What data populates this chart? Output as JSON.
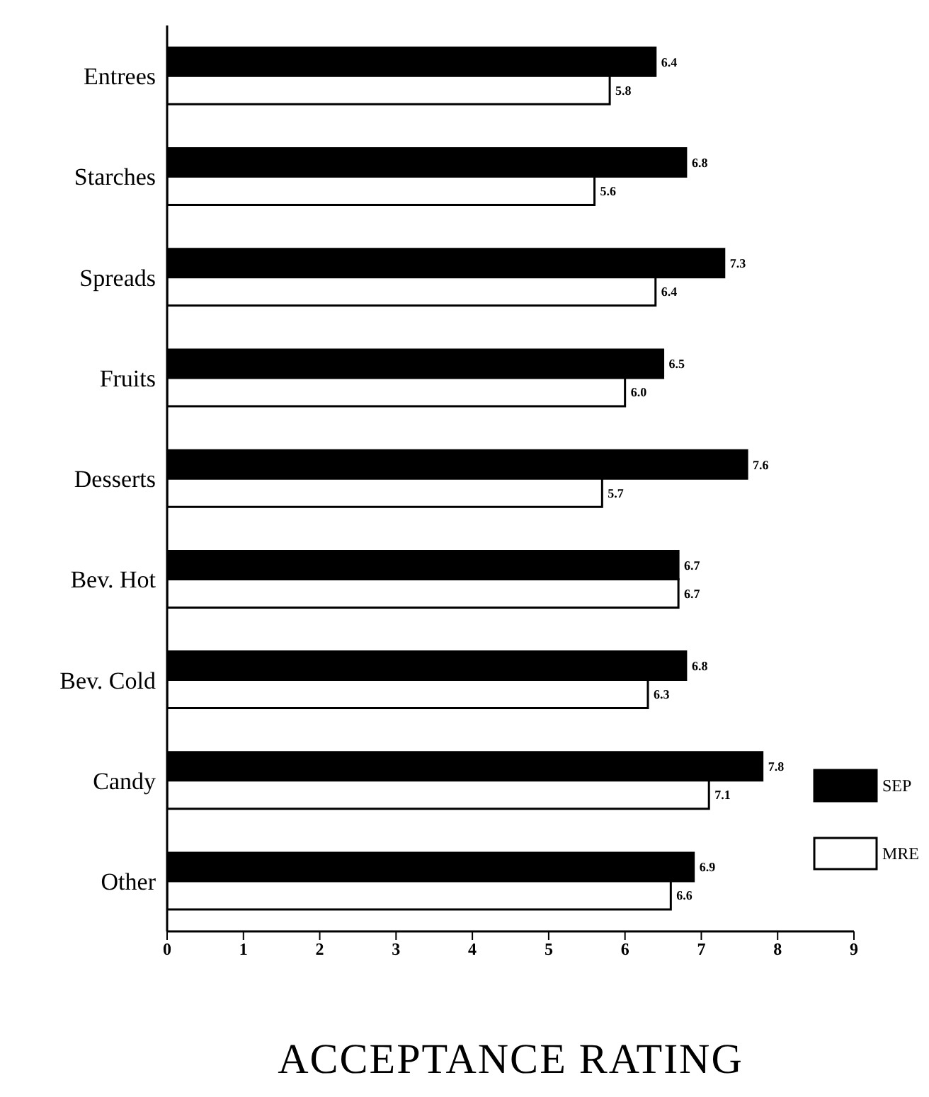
{
  "chart_data": {
    "type": "bar",
    "orientation": "horizontal",
    "xlabel": "ACCEPTANCE RATING",
    "categories": [
      "Entrees",
      "Starches",
      "Spreads",
      "Fruits",
      "Desserts",
      "Bev. Hot",
      "Bev. Cold",
      "Candy",
      "Other"
    ],
    "series": [
      {
        "name": "SEP",
        "color": "#000000",
        "values": [
          6.4,
          6.8,
          7.3,
          6.5,
          7.6,
          6.7,
          6.8,
          7.8,
          6.9
        ],
        "value_labels": [
          "6.4",
          "6.8",
          "7.3",
          "6.5",
          "7.6",
          "6.7",
          "6.8",
          "7.8",
          "6.9"
        ]
      },
      {
        "name": "MRE",
        "color": "#ffffff",
        "values": [
          5.8,
          5.6,
          6.4,
          6.0,
          5.7,
          6.7,
          6.3,
          7.1,
          6.6
        ],
        "value_labels": [
          "5.8",
          "5.6",
          "6.4",
          "6.0",
          "5.7",
          "6.7",
          "6.3",
          "7.1",
          "6.6"
        ]
      }
    ],
    "xlim": [
      0,
      9
    ],
    "xticks": [
      0,
      1,
      2,
      3,
      4,
      5,
      6,
      7,
      8,
      9
    ],
    "legend": "bottom right",
    "grid": false
  }
}
